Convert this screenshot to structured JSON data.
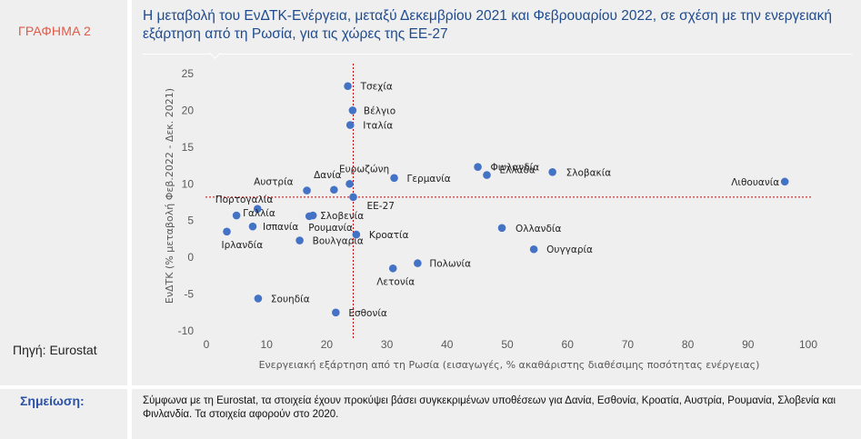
{
  "sidebar": {
    "graph_label": "ΓΡΑΦΗΜΑ 2",
    "source_label": "Πηγή: Eurostat",
    "note_label": "Σημείωση:"
  },
  "note": {
    "text": "Σύμφωνα με τη Eurostat, τα στοιχεία έχουν προκύψει βάσει συγκεκριμένων υποθέσεων για Δανία, Εσθονία, Κροατία, Αυστρία, Ρουμανία, Σλοβενία και Φινλανδία. Τα στοιχεία αφορούν στο 2020."
  },
  "colors": {
    "point": "#4472c4",
    "eu_label": "#c00000",
    "reference_line": "#c00000",
    "title": "#1f4b8e"
  },
  "chart_data": {
    "type": "scatter",
    "title": "Η μεταβολή του ΕνΔΤΚ-Ενέργεια, μεταξύ Δεκεμβρίου 2021 και Φεβρουαρίου 2022, σε σχέση με την ενεργειακή εξάρτηση από τη Ρωσία, για τις χώρες της ΕΕ-27",
    "xlabel": "Ενεργειακή εξάρτηση από τη Ρωσία (εισαγωγές, % ακαθάριστης διαθέσιμης ποσότητας ενέργειας)",
    "ylabel": "ΕνΔΤΚ (% μεταβολή Φεβ.2022 - Δεκ. 2021)",
    "xlim": [
      0,
      100
    ],
    "ylim": [
      -10,
      25
    ],
    "xticks": [
      "0",
      "10",
      "20",
      "30",
      "40",
      "50",
      "60",
      "70",
      "80",
      "90",
      "100"
    ],
    "yticks": [
      "25",
      "20",
      "15",
      "10",
      "5",
      "0",
      "-5",
      "-10"
    ],
    "grid": false,
    "reference_lines": {
      "x": 24.4,
      "y": 8.2
    },
    "points": [
      {
        "label": "Τσεχία",
        "x": 23.5,
        "y": 23.3
      },
      {
        "label": "Βέλγιο",
        "x": 24.3,
        "y": 20.0
      },
      {
        "label": "Ιταλία",
        "x": 23.9,
        "y": 18.0
      },
      {
        "label": "Ευρωζώνη",
        "x": 23.8,
        "y": 10.0
      },
      {
        "label": "Γερμανία",
        "x": 31.2,
        "y": 10.8
      },
      {
        "label": "Δανία",
        "x": 21.2,
        "y": 9.2
      },
      {
        "label": "Αυστρία",
        "x": 16.7,
        "y": 9.1
      },
      {
        "label": "ΕΕ-27",
        "x": 24.4,
        "y": 8.2
      },
      {
        "label": "Πορτογαλία",
        "x": 8.5,
        "y": 6.6
      },
      {
        "label": "Γαλλία",
        "x": 5.0,
        "y": 5.7
      },
      {
        "label": "Σλοβενία",
        "x": 17.7,
        "y": 5.7
      },
      {
        "label": "Ρουμανία",
        "x": 17.1,
        "y": 5.6
      },
      {
        "label": "Ισπανία",
        "x": 7.7,
        "y": 4.2
      },
      {
        "label": "Ιρλανδία",
        "x": 3.4,
        "y": 3.5
      },
      {
        "label": "Βουλγαρία",
        "x": 15.5,
        "y": 2.3
      },
      {
        "label": "Κροατία",
        "x": 24.9,
        "y": 3.1
      },
      {
        "label": "Φινλανδία",
        "x": 45.1,
        "y": 12.3
      },
      {
        "label": "Ελλάδα",
        "x": 46.6,
        "y": 11.2
      },
      {
        "label": "Σλοβακία",
        "x": 57.5,
        "y": 11.6
      },
      {
        "label": "Λιθουανία",
        "x": 96.1,
        "y": 10.3
      },
      {
        "label": "Ολλανδία",
        "x": 49.1,
        "y": 4.0
      },
      {
        "label": "Ουγγαρία",
        "x": 54.4,
        "y": 1.1
      },
      {
        "label": "Πολωνία",
        "x": 35.1,
        "y": -0.8
      },
      {
        "label": "Λετονία",
        "x": 31.0,
        "y": -1.5
      },
      {
        "label": "Σουηδία",
        "x": 8.6,
        "y": -5.6
      },
      {
        "label": "Εσθονία",
        "x": 21.5,
        "y": -7.5
      }
    ]
  }
}
